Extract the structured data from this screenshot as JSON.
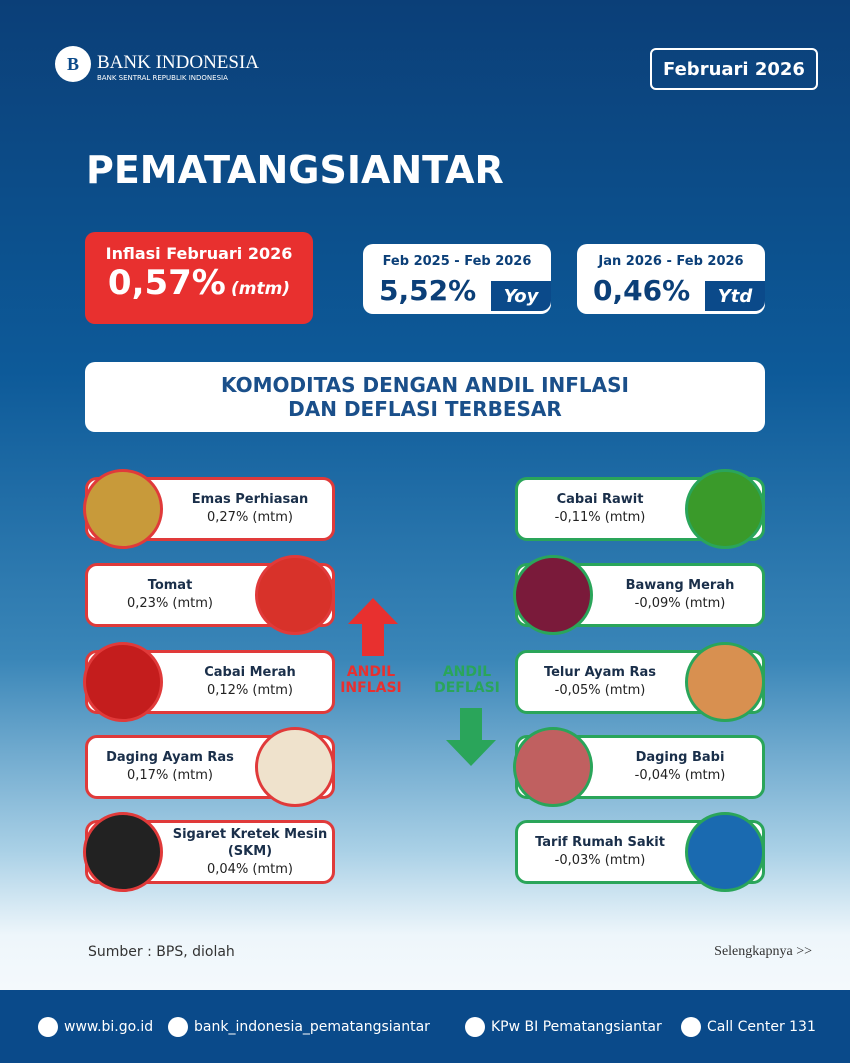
{
  "header": {
    "logo_title": "BANK INDONESIA",
    "logo_subtitle": "BANK SENTRAL REPUBLIK INDONESIA",
    "period": "Februari 2026"
  },
  "city": "PEMATANGSIANTAR",
  "main": {
    "label": "Inflasi Februari 2026",
    "value": "0,57%",
    "unit": "(mtm)"
  },
  "yoy": {
    "label": "Feb 2025 - Feb 2026",
    "value": "5,52%",
    "unit": "Yoy"
  },
  "ytd": {
    "label": "Jan 2026 - Feb 2026",
    "value": "0,46%",
    "unit": "Ytd"
  },
  "section_title": "KOMODITAS DENGAN ANDIL INFLASI DAN DEFLASI TERBESAR",
  "inflation": {
    "label": "ANDIL INFLASI",
    "items": [
      {
        "name": "Emas Perhiasan",
        "value": "0,27% (mtm)"
      },
      {
        "name": "Tomat",
        "value": "0,23% (mtm)"
      },
      {
        "name": "Cabai Merah",
        "value": "0,12% (mtm)"
      },
      {
        "name": "Daging Ayam Ras",
        "value": "0,17% (mtm)"
      },
      {
        "name": "Sigaret Kretek Mesin (SKM)",
        "value": "0,04% (mtm)"
      }
    ]
  },
  "deflation": {
    "label": "ANDIL DEFLASI",
    "items": [
      {
        "name": "Cabai Rawit",
        "value": "-0,11% (mtm)"
      },
      {
        "name": "Bawang Merah",
        "value": "-0,09% (mtm)"
      },
      {
        "name": "Telur Ayam Ras",
        "value": "-0,05% (mtm)"
      },
      {
        "name": "Daging Babi",
        "value": "-0,04% (mtm)"
      },
      {
        "name": "Tarif Rumah Sakit",
        "value": "-0,03% (mtm)"
      }
    ]
  },
  "source": "Sumber : BPS, diolah",
  "more": "Selengkapnya >>",
  "footer": [
    "www.bi.go.id",
    "bank_indonesia_pematangsiantar",
    "KPw BI Pematangsiantar",
    "Call Center 131"
  ]
}
